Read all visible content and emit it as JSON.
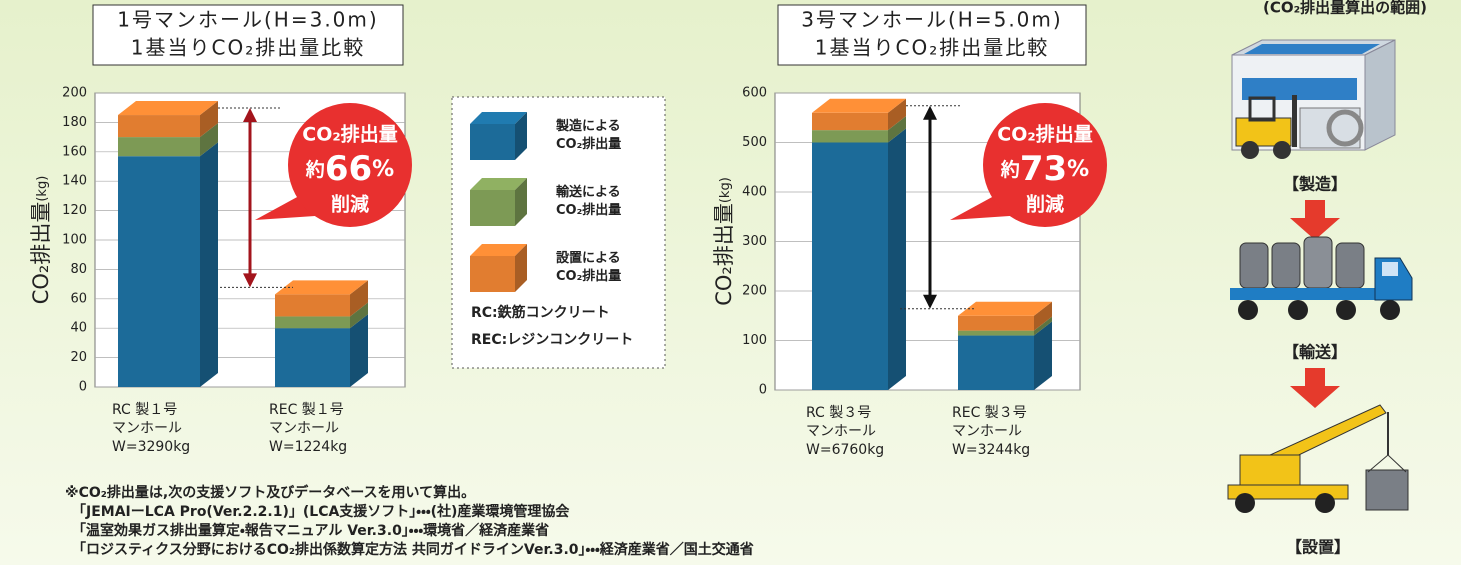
{
  "chart_data": [
    {
      "type": "bar",
      "title": [
        "1号マンホール(H=3.0m)",
        "1基当りCO₂排出量比較"
      ],
      "y_label": "CO₂排出量",
      "y_unit": "(kg)",
      "categories": [
        [
          "RC 製１号",
          "マンホール",
          "W=3290kg"
        ],
        [
          "REC 製１号",
          "マンホール",
          "W=1224kg"
        ]
      ],
      "series": [
        {
          "name": "製造による\nCO₂排出量",
          "color": "#1c6b99",
          "values": [
            157,
            40
          ]
        },
        {
          "name": "輸送による\nCO₂排出量",
          "color": "#7d9a55",
          "values": [
            13,
            8
          ]
        },
        {
          "name": "設置による\nCO₂排出量",
          "color": "#e17d30",
          "values": [
            15,
            15
          ]
        }
      ],
      "ylim": [
        0,
        200
      ],
      "yticks": [
        0,
        20,
        40,
        60,
        80,
        100,
        120,
        140,
        160,
        180,
        200
      ],
      "grid": true,
      "annotation": {
        "heading": "CO₂排出量",
        "prefix": "約",
        "value": 66,
        "unit": "%",
        "action": "削減"
      }
    },
    {
      "type": "bar",
      "title": [
        "3号マンホール(H=5.0m)",
        "1基当りCO₂排出量比較"
      ],
      "y_label": "CO₂排出量",
      "y_unit": "(kg)",
      "categories": [
        [
          "RC 製３号",
          "マンホール",
          "W=6760kg"
        ],
        [
          "REC 製３号",
          "マンホール",
          "W=3244kg"
        ]
      ],
      "series": [
        {
          "color": "#1c6b99",
          "values": [
            500,
            110
          ]
        },
        {
          "color": "#7d9a55",
          "values": [
            25,
            10
          ]
        },
        {
          "color": "#e17d30",
          "values": [
            35,
            30
          ]
        }
      ],
      "ylim": [
        0,
        600
      ],
      "yticks": [
        0,
        100,
        200,
        300,
        400,
        500,
        600
      ],
      "grid": true,
      "annotation": {
        "heading": "CO₂排出量",
        "prefix": "約",
        "value": 73,
        "unit": "%",
        "action": "削減"
      }
    }
  ],
  "legend_notes": [
    "RC:鉄筋コンクリート",
    "REC:レジンコンクリート"
  ],
  "footnotes": [
    "※CO₂排出量は,次の支援ソフト及びデータベースを用いて算出。",
    "「JEMAIーLCA Pro(Ver.2.2.1)」(LCA支援ソフト」・・・(社)産業環境管理協会",
    "「温室効果ガス排出量算定・報告マニュアル Ver.3.0」・・・環境省／経済産業省",
    "「ロジスティクス分野におけるCO₂排出係数算定方法 共同ガイドラインVer.3.0」・・・経済産業省／国土交通省"
  ],
  "scope": {
    "heading": "(CO₂排出量算出の範囲)",
    "steps": [
      "【製造】",
      "【輸送】",
      "【設置】"
    ]
  }
}
